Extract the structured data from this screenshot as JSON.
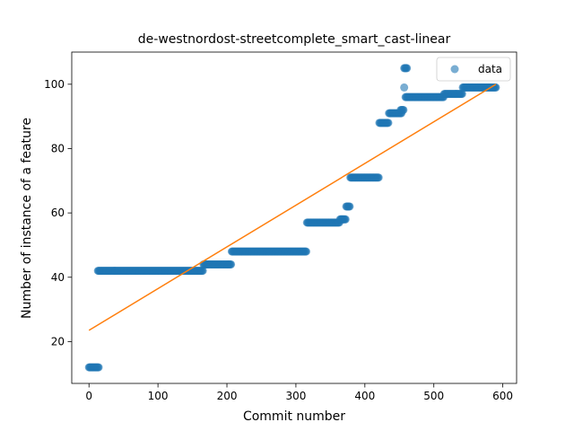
{
  "chart_data": {
    "type": "scatter",
    "title": "de-westnordost-streetcomplete_smart_cast-linear",
    "xlabel": "Commit number",
    "ylabel": "Number of instance of a feature",
    "xlim": [
      -25,
      620
    ],
    "ylim": [
      7,
      110
    ],
    "xticks": [
      0,
      100,
      200,
      300,
      400,
      500,
      600
    ],
    "yticks": [
      20,
      40,
      60,
      80,
      100
    ],
    "grid": false,
    "legend": {
      "position": "top-right",
      "entries": [
        "data"
      ]
    },
    "colors": {
      "data": "#1f77b4",
      "fit": "#ff7f0e"
    },
    "series": [
      {
        "name": "data",
        "kind": "scatter",
        "segments": [
          {
            "x_start": 0,
            "x_end": 14,
            "y": 12
          },
          {
            "x_start": 13,
            "x_end": 165,
            "y": 42
          },
          {
            "x_start": 166,
            "x_end": 206,
            "y": 44
          },
          {
            "x_start": 207,
            "x_end": 315,
            "y": 48
          },
          {
            "x_start": 316,
            "x_end": 363,
            "y": 57
          },
          {
            "x_start": 364,
            "x_end": 372,
            "y": 58
          },
          {
            "x_start": 373,
            "x_end": 378,
            "y": 62
          },
          {
            "x_start": 379,
            "x_end": 420,
            "y": 71
          },
          {
            "x_start": 421,
            "x_end": 434,
            "y": 88
          },
          {
            "x_start": 435,
            "x_end": 453,
            "y": 91
          },
          {
            "x_start": 452,
            "x_end": 456,
            "y": 92
          },
          {
            "x_start": 457,
            "x_end": 461,
            "y": 105
          },
          {
            "x_start": 457,
            "x_end": 457,
            "y": 99
          },
          {
            "x_start": 459,
            "x_end": 514,
            "y": 96
          },
          {
            "x_start": 515,
            "x_end": 541,
            "y": 97
          },
          {
            "x_start": 542,
            "x_end": 590,
            "y": 99
          }
        ]
      },
      {
        "name": "",
        "kind": "line",
        "x": [
          0,
          590
        ],
        "y": [
          23.5,
          100
        ]
      }
    ]
  }
}
